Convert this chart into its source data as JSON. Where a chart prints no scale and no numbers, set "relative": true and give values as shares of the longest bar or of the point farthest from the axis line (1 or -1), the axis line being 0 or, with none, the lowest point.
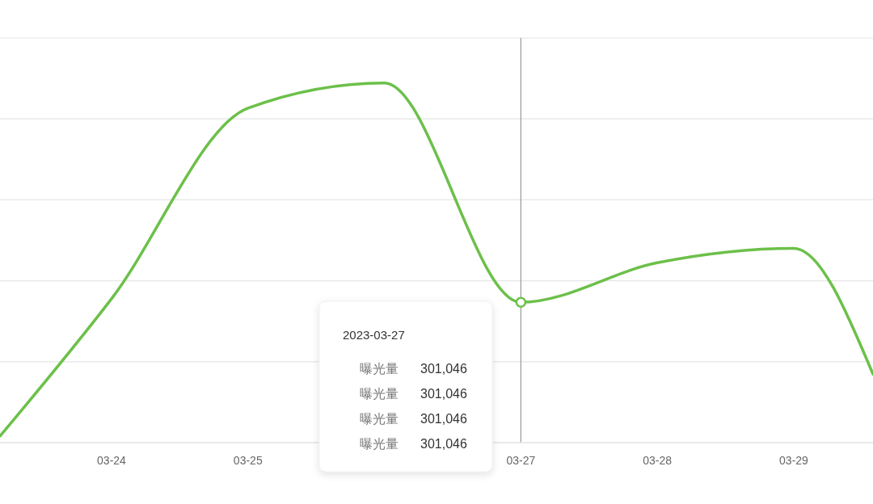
{
  "chart_data": {
    "type": "line",
    "x": [
      "2023-03-23T04:23",
      "2023-03-24",
      "2023-03-25",
      "2023-03-26",
      "2023-03-27",
      "2023-03-28",
      "2023-03-29",
      "2023-03-29T13:56"
    ],
    "xlim": [
      "2023-03-23T04:23",
      "2023-03-29T13:56"
    ],
    "xticks": [
      {
        "value": "2023-03-24",
        "label": "03-24"
      },
      {
        "value": "2023-03-25",
        "label": "03-25"
      },
      {
        "value": "2023-03-27",
        "label": "03-27"
      },
      {
        "value": "2023-03-28",
        "label": "03-28"
      },
      {
        "value": "2023-03-29",
        "label": "03-29"
      }
    ],
    "series": [
      {
        "color": "#6cc04a",
        "values": [
          0.018,
          0.4,
          0.93,
          1,
          0.39,
          0.5,
          0.54,
          0.19
        ]
      },
      {
        "type": "scatter",
        "x": [
          "2023-03-27"
        ],
        "values": [
          0.39
        ],
        "color": "#6cc04a",
        "marker": "circle"
      }
    ],
    "relative": true,
    "ref_lines": [
      {
        "axis": "y",
        "value": 0.225,
        "color": "#e6e6e6"
      },
      {
        "axis": "y",
        "value": 0.45,
        "color": "#e6e6e6"
      },
      {
        "axis": "y",
        "value": 0.675,
        "color": "#e6e6e6"
      },
      {
        "axis": "y",
        "value": 0.9,
        "color": "#e6e6e6"
      },
      {
        "axis": "y",
        "value": 1.125,
        "color": "#e6e6e6"
      },
      {
        "axis": "x",
        "value": "2023-03-27",
        "color": "#999999"
      }
    ],
    "annotations": [
      "2023-03-27",
      "曝光量 301,046",
      "曝光量 301,046",
      "曝光量 301,046",
      "曝光量 301,046"
    ]
  }
}
